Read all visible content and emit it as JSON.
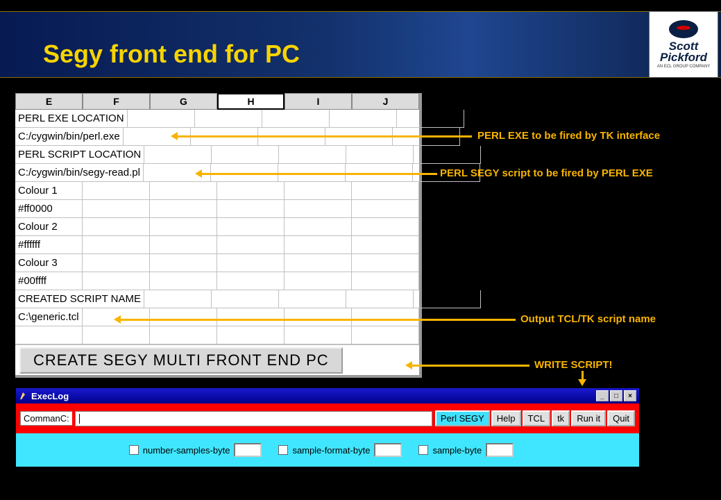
{
  "header": {
    "title": "Segy front end for PC",
    "title_color": "#f8d400",
    "bg_gradient": [
      "#071a52",
      "#1f4690"
    ]
  },
  "logo": {
    "line1": "Scott",
    "line2": "Pickford",
    "sub": "AN ECL GROUP COMPANY",
    "ellipse_color": "#0a1f44",
    "dot_color": "#d10000"
  },
  "annotations": {
    "a1": "PERL EXE to be fired by TK interface",
    "a2": "PERL SEGY script to be fired by PERL EXE",
    "a3": "Output TCL/TK script name",
    "a4": "WRITE SCRIPT!",
    "color": "#f8b400"
  },
  "sheet": {
    "columns": [
      "E",
      "F",
      "G",
      "H",
      "I",
      "J"
    ],
    "active_col": "H",
    "rows": [
      "PERL EXE LOCATION",
      "C:/cygwin/bin/perl.exe",
      "PERL SCRIPT LOCATION",
      "C:/cygwin/bin/segy-read.pl",
      "Colour 1",
      "#ff0000",
      "Colour 2",
      "#ffffff",
      "Colour 3",
      "#00ffff",
      "CREATED SCRIPT NAME",
      "C:\\generic.tcl",
      ""
    ],
    "button_label": "CREATE SEGY MULTI FRONT END PC",
    "bg": "#ffffff",
    "grid_color": "#c0c0c0",
    "header_bg": "#dcdcdc"
  },
  "execlog": {
    "title": "ExecLog",
    "cmd_label": "CommanC:",
    "cmd_value": "",
    "buttons": [
      "Perl SEGY",
      "Help",
      "TCL",
      "tk",
      "Run it",
      "Quit"
    ],
    "cyan_button": "Perl SEGY",
    "options": [
      "number-samples-byte",
      "sample-format-byte",
      "sample-byte"
    ],
    "titlebar_bg": "#00008b",
    "cmdrow_bg": "#ff0000",
    "body_bg": "#40e6ff"
  }
}
